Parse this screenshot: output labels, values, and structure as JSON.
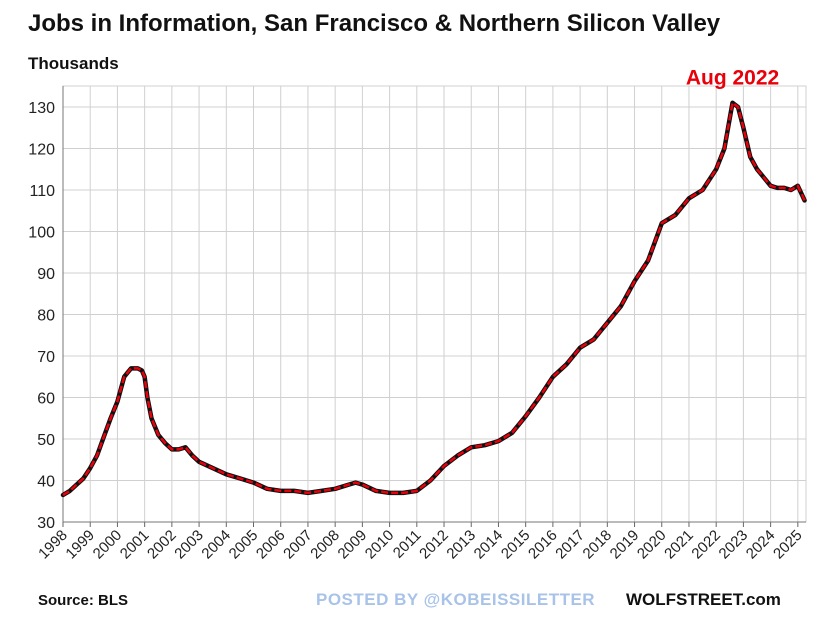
{
  "title": "Jobs in Information, San Francisco & Northern Silicon Valley",
  "subtitle": "Thousands",
  "footer": {
    "source": "Source: BLS",
    "posted": "POSTED BY @KOBEISSILETTER",
    "site": "WOLFSTREET.com"
  },
  "colors": {
    "line": "#e8000b",
    "line_shadow": "#111111",
    "grid": "#d0d0d0",
    "annotation": "#e8000b"
  },
  "chart_data": {
    "type": "line",
    "title": "Jobs in Information, San Francisco & Northern Silicon Valley",
    "ylabel": "Thousands",
    "xlabel": "",
    "ylim": [
      30,
      135
    ],
    "xlim": [
      1998,
      2025.3
    ],
    "yticks": [
      30,
      40,
      50,
      60,
      70,
      80,
      90,
      100,
      110,
      120,
      130
    ],
    "xticks": [
      "1998",
      "1999",
      "2000",
      "2001",
      "2002",
      "2003",
      "2004",
      "2005",
      "2006",
      "2007",
      "2008",
      "2009",
      "2010",
      "2011",
      "2012",
      "2013",
      "2014",
      "2015",
      "2016",
      "2017",
      "2018",
      "2019",
      "2020",
      "2021",
      "2022",
      "2023",
      "2024",
      "2025"
    ],
    "grid": true,
    "annotation": {
      "text": "Aug 2022",
      "x": 2022.6,
      "y": 133
    },
    "series": [
      {
        "x": [
          1998.0,
          1998.25,
          1998.5,
          1998.75,
          1999.0,
          1999.25,
          1999.5,
          1999.75,
          2000.0,
          2000.25,
          2000.5,
          2000.75,
          2000.9,
          2001.0,
          2001.1,
          2001.25,
          2001.5,
          2001.75,
          2002.0,
          2002.25,
          2002.5,
          2002.75,
          2003.0,
          2003.5,
          2004.0,
          2004.5,
          2005.0,
          2005.5,
          2006.0,
          2006.5,
          2007.0,
          2007.5,
          2008.0,
          2008.5,
          2008.75,
          2009.0,
          2009.5,
          2010.0,
          2010.5,
          2011.0,
          2011.5,
          2012.0,
          2012.5,
          2013.0,
          2013.5,
          2014.0,
          2014.5,
          2015.0,
          2015.5,
          2016.0,
          2016.5,
          2017.0,
          2017.5,
          2018.0,
          2018.5,
          2019.0,
          2019.5,
          2020.0,
          2020.5,
          2021.0,
          2021.5,
          2022.0,
          2022.3,
          2022.6,
          2022.8,
          2023.0,
          2023.25,
          2023.5,
          2023.75,
          2024.0,
          2024.25,
          2024.5,
          2024.75,
          2025.0,
          2025.25
        ],
        "values": [
          36.5,
          37.5,
          39,
          40.5,
          43,
          46,
          50.5,
          55,
          59,
          65,
          67,
          67,
          66.5,
          65,
          60,
          55,
          51,
          49,
          47.5,
          47.5,
          48,
          46,
          44.5,
          43,
          41.5,
          40.5,
          39.5,
          38,
          37.5,
          37.5,
          37,
          37.5,
          38,
          39,
          39.5,
          39,
          37.5,
          37,
          37,
          37.5,
          40,
          43.5,
          46,
          48,
          48.5,
          49.5,
          51.5,
          55.5,
          60,
          65,
          68,
          72,
          74,
          78,
          82,
          88,
          93,
          102,
          104,
          108,
          110,
          115,
          120,
          131,
          130,
          125,
          118,
          115,
          113,
          111,
          110.5,
          110.5,
          110,
          111,
          107.5
        ]
      }
    ]
  }
}
